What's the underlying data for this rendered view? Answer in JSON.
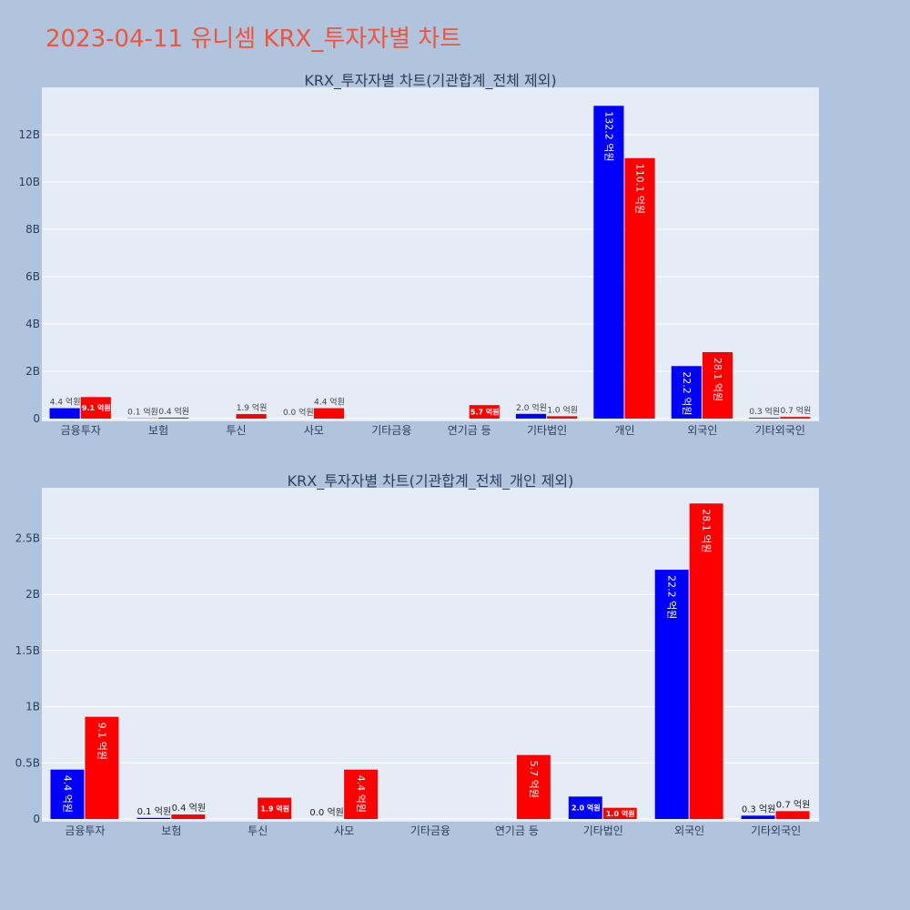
{
  "title": "2023-04-11 유니셈 KRX_투자자별 차트",
  "colors": {
    "background": "#b0c4de",
    "plot_bg": "#e5ecf6",
    "title": "#ef553b",
    "buy": "#0000ff",
    "sell": "#ff0000"
  },
  "chart_data": [
    {
      "type": "bar",
      "title": "KRX_투자자별 차트(기관합계_전체 제외)",
      "categories": [
        "금융투자",
        "보험",
        "투신",
        "사모",
        "기타금융",
        "연기금 등",
        "기타법인",
        "개인",
        "외국인",
        "기타외국인"
      ],
      "ylim": [
        0,
        14000000000
      ],
      "yticks": [
        0,
        2000000000,
        4000000000,
        6000000000,
        8000000000,
        10000000000,
        12000000000
      ],
      "yticklabels": [
        "0",
        "2B",
        "4B",
        "6B",
        "8B",
        "10B",
        "12B"
      ],
      "series": [
        {
          "values": [
            440000000,
            10000000,
            0,
            0,
            0,
            0,
            200000000,
            13220000000,
            2220000000,
            30000000
          ],
          "labels": [
            "4.4 억원",
            "0.1 억원",
            "",
            "0.0 억원",
            "",
            "",
            "2.0 억원",
            "132.2 억원",
            "22.2 억원",
            "0.3 억원"
          ]
        },
        {
          "values": [
            910000000,
            40000000,
            190000000,
            440000000,
            0,
            570000000,
            100000000,
            11010000000,
            2810000000,
            70000000
          ],
          "labels": [
            "9.1 억원",
            "0.4 억원",
            "1.9 억원",
            "4.4 억원",
            "",
            "5.7 억원",
            "1.0 억원",
            "110.1 억원",
            "28.1 억원",
            "0.7 억원"
          ]
        }
      ]
    },
    {
      "type": "bar",
      "title": "KRX_투자자별 차트(기관합계_전체_개인 제외)",
      "categories": [
        "금융투자",
        "보험",
        "투신",
        "사모",
        "기타금융",
        "연기금 등",
        "기타법인",
        "외국인",
        "기타외국인"
      ],
      "ylim": [
        0,
        2950000000
      ],
      "yticks": [
        0,
        500000000,
        1000000000,
        1500000000,
        2000000000,
        2500000000
      ],
      "yticklabels": [
        "0",
        "0.5B",
        "1B",
        "1.5B",
        "2B",
        "2.5B"
      ],
      "series": [
        {
          "values": [
            440000000,
            10000000,
            0,
            0,
            0,
            0,
            200000000,
            2220000000,
            30000000
          ],
          "labels": [
            "4.4 억원",
            "0.1 억원",
            "",
            "0.0 억원",
            "",
            "",
            "2.0 억원",
            "22.2 억원",
            "0.3 억원"
          ]
        },
        {
          "values": [
            910000000,
            40000000,
            190000000,
            440000000,
            0,
            570000000,
            100000000,
            2810000000,
            70000000
          ],
          "labels": [
            "9.1 억원",
            "0.4 억원",
            "1.9 억원",
            "4.4 억원",
            "",
            "5.7 억원",
            "1.0 억원",
            "28.1 억원",
            "0.7 억원"
          ]
        }
      ]
    }
  ]
}
